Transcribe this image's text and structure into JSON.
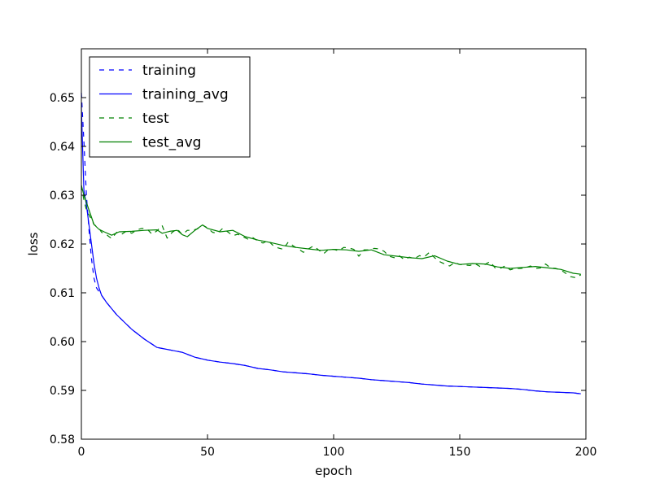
{
  "chart_data": {
    "type": "line",
    "title": "",
    "xlabel": "epoch",
    "ylabel": "loss",
    "xlim": [
      0,
      200
    ],
    "ylim": [
      0.58,
      0.66
    ],
    "x_ticks": [
      0,
      50,
      100,
      150,
      200
    ],
    "y_ticks": [
      0.58,
      0.59,
      0.6,
      0.61,
      0.62,
      0.63,
      0.64,
      0.65
    ],
    "grid": false,
    "legend_position": "top-left",
    "series": [
      {
        "name": "training",
        "style": "dashed",
        "color": "#0000ff",
        "points": [
          [
            0,
            0.651
          ],
          [
            1,
            0.641
          ],
          [
            2,
            0.63
          ],
          [
            3,
            0.623
          ],
          [
            4,
            0.617
          ],
          [
            5,
            0.613
          ],
          [
            6,
            0.611
          ],
          [
            8,
            0.6095
          ],
          [
            10,
            0.608
          ],
          [
            14,
            0.6055
          ],
          [
            20,
            0.6025
          ],
          [
            25,
            0.6005
          ],
          [
            30,
            0.5988
          ],
          [
            33,
            0.5985
          ],
          [
            35,
            0.5983
          ],
          [
            40,
            0.5978
          ],
          [
            45,
            0.5968
          ],
          [
            50,
            0.5962
          ],
          [
            55,
            0.5958
          ],
          [
            60,
            0.5955
          ],
          [
            65,
            0.5951
          ],
          [
            70,
            0.5945
          ],
          [
            75,
            0.5942
          ],
          [
            80,
            0.5938
          ],
          [
            85,
            0.5936
          ],
          [
            90,
            0.5934
          ],
          [
            95,
            0.5931
          ],
          [
            100,
            0.5929
          ],
          [
            105,
            0.5927
          ],
          [
            110,
            0.5925
          ],
          [
            115,
            0.5922
          ],
          [
            120,
            0.592
          ],
          [
            125,
            0.5918
          ],
          [
            130,
            0.5916
          ],
          [
            135,
            0.5913
          ],
          [
            140,
            0.5911
          ],
          [
            145,
            0.5909
          ],
          [
            150,
            0.5908
          ],
          [
            155,
            0.5907
          ],
          [
            160,
            0.5906
          ],
          [
            165,
            0.5905
          ],
          [
            170,
            0.5904
          ],
          [
            175,
            0.5902
          ],
          [
            180,
            0.5899
          ],
          [
            185,
            0.5897
          ],
          [
            190,
            0.5896
          ],
          [
            195,
            0.5895
          ],
          [
            198,
            0.5893
          ]
        ]
      },
      {
        "name": "training_avg",
        "style": "solid",
        "color": "#0000ff",
        "points": [
          [
            0,
            0.648
          ],
          [
            1,
            0.631
          ],
          [
            2,
            0.628
          ],
          [
            3,
            0.624
          ],
          [
            4,
            0.62
          ],
          [
            5,
            0.616
          ],
          [
            6,
            0.613
          ],
          [
            7,
            0.611
          ],
          [
            8,
            0.6095
          ],
          [
            10,
            0.608
          ],
          [
            14,
            0.6055
          ],
          [
            20,
            0.6025
          ],
          [
            25,
            0.6005
          ],
          [
            30,
            0.5988
          ],
          [
            33,
            0.5985
          ],
          [
            35,
            0.5983
          ],
          [
            40,
            0.5978
          ],
          [
            45,
            0.5968
          ],
          [
            50,
            0.5962
          ],
          [
            55,
            0.5958
          ],
          [
            60,
            0.5955
          ],
          [
            65,
            0.5951
          ],
          [
            70,
            0.5945
          ],
          [
            75,
            0.5942
          ],
          [
            80,
            0.5938
          ],
          [
            85,
            0.5936
          ],
          [
            90,
            0.5934
          ],
          [
            95,
            0.5931
          ],
          [
            100,
            0.5929
          ],
          [
            105,
            0.5927
          ],
          [
            110,
            0.5925
          ],
          [
            115,
            0.5922
          ],
          [
            120,
            0.592
          ],
          [
            125,
            0.5918
          ],
          [
            130,
            0.5916
          ],
          [
            135,
            0.5913
          ],
          [
            140,
            0.5911
          ],
          [
            145,
            0.5909
          ],
          [
            150,
            0.5908
          ],
          [
            155,
            0.5907
          ],
          [
            160,
            0.5906
          ],
          [
            165,
            0.5905
          ],
          [
            170,
            0.5904
          ],
          [
            175,
            0.5902
          ],
          [
            180,
            0.5899
          ],
          [
            185,
            0.5897
          ],
          [
            190,
            0.5896
          ],
          [
            195,
            0.5895
          ],
          [
            198,
            0.5893
          ]
        ]
      },
      {
        "name": "test",
        "style": "dashed",
        "color": "#008000",
        "points": [
          [
            0,
            0.632
          ],
          [
            1,
            0.629
          ],
          [
            2,
            0.627
          ],
          [
            3,
            0.626
          ],
          [
            4,
            0.625
          ],
          [
            5,
            0.624
          ],
          [
            6,
            0.6236
          ],
          [
            7,
            0.6232
          ],
          [
            8,
            0.6224
          ],
          [
            10,
            0.6219
          ],
          [
            12,
            0.6211
          ],
          [
            14,
            0.6224
          ],
          [
            16,
            0.622
          ],
          [
            18,
            0.6227
          ],
          [
            20,
            0.6222
          ],
          [
            22,
            0.6229
          ],
          [
            24,
            0.6232
          ],
          [
            26,
            0.6231
          ],
          [
            28,
            0.622
          ],
          [
            30,
            0.6227
          ],
          [
            32,
            0.6238
          ],
          [
            34,
            0.6212
          ],
          [
            36,
            0.6224
          ],
          [
            38,
            0.6231
          ],
          [
            40,
            0.6219
          ],
          [
            42,
            0.6228
          ],
          [
            44,
            0.6228
          ],
          [
            46,
            0.6231
          ],
          [
            48,
            0.6239
          ],
          [
            50,
            0.6233
          ],
          [
            52,
            0.6224
          ],
          [
            54,
            0.6222
          ],
          [
            56,
            0.6232
          ],
          [
            58,
            0.6225
          ],
          [
            60,
            0.6217
          ],
          [
            62,
            0.622
          ],
          [
            64,
            0.6215
          ],
          [
            66,
            0.621
          ],
          [
            68,
            0.6213
          ],
          [
            70,
            0.6206
          ],
          [
            72,
            0.6202
          ],
          [
            74,
            0.6207
          ],
          [
            76,
            0.6197
          ],
          [
            78,
            0.6192
          ],
          [
            80,
            0.6189
          ],
          [
            82,
            0.6204
          ],
          [
            84,
            0.6196
          ],
          [
            86,
            0.619
          ],
          [
            88,
            0.6183
          ],
          [
            90,
            0.619
          ],
          [
            92,
            0.6196
          ],
          [
            94,
            0.6188
          ],
          [
            96,
            0.618
          ],
          [
            98,
            0.6189
          ],
          [
            100,
            0.6189
          ],
          [
            102,
            0.6186
          ],
          [
            104,
            0.6193
          ],
          [
            106,
            0.6192
          ],
          [
            108,
            0.6189
          ],
          [
            110,
            0.6175
          ],
          [
            112,
            0.6188
          ],
          [
            114,
            0.6188
          ],
          [
            116,
            0.6191
          ],
          [
            118,
            0.619
          ],
          [
            120,
            0.6185
          ],
          [
            122,
            0.6175
          ],
          [
            124,
            0.6172
          ],
          [
            126,
            0.6176
          ],
          [
            128,
            0.6168
          ],
          [
            130,
            0.6173
          ],
          [
            132,
            0.617
          ],
          [
            134,
            0.6176
          ],
          [
            136,
            0.6174
          ],
          [
            138,
            0.6183
          ],
          [
            140,
            0.6172
          ],
          [
            142,
            0.6164
          ],
          [
            144,
            0.6159
          ],
          [
            146,
            0.6155
          ],
          [
            148,
            0.6162
          ],
          [
            150,
            0.6158
          ],
          [
            152,
            0.6157
          ],
          [
            154,
            0.6156
          ],
          [
            156,
            0.616
          ],
          [
            158,
            0.6154
          ],
          [
            160,
            0.6158
          ],
          [
            162,
            0.6164
          ],
          [
            164,
            0.6151
          ],
          [
            166,
            0.615
          ],
          [
            168,
            0.6155
          ],
          [
            170,
            0.6147
          ],
          [
            172,
            0.615
          ],
          [
            174,
            0.615
          ],
          [
            176,
            0.6151
          ],
          [
            178,
            0.6155
          ],
          [
            180,
            0.615
          ],
          [
            182,
            0.6151
          ],
          [
            184,
            0.6159
          ],
          [
            186,
            0.6151
          ],
          [
            188,
            0.615
          ],
          [
            190,
            0.6147
          ],
          [
            192,
            0.614
          ],
          [
            194,
            0.6133
          ],
          [
            196,
            0.6131
          ],
          [
            198,
            0.6137
          ]
        ]
      },
      {
        "name": "test_avg",
        "style": "solid",
        "color": "#008000",
        "points": [
          [
            0,
            0.632
          ],
          [
            1,
            0.63
          ],
          [
            3,
            0.627
          ],
          [
            5,
            0.624
          ],
          [
            7,
            0.623
          ],
          [
            9,
            0.6225
          ],
          [
            12,
            0.6218
          ],
          [
            15,
            0.6225
          ],
          [
            20,
            0.6226
          ],
          [
            25,
            0.6228
          ],
          [
            30,
            0.6229
          ],
          [
            32,
            0.6222
          ],
          [
            35,
            0.6226
          ],
          [
            38,
            0.6228
          ],
          [
            40,
            0.6219
          ],
          [
            42,
            0.6215
          ],
          [
            45,
            0.6228
          ],
          [
            48,
            0.6239
          ],
          [
            50,
            0.6232
          ],
          [
            55,
            0.6225
          ],
          [
            60,
            0.6228
          ],
          [
            65,
            0.6215
          ],
          [
            70,
            0.6208
          ],
          [
            75,
            0.6203
          ],
          [
            80,
            0.6197
          ],
          [
            85,
            0.6193
          ],
          [
            90,
            0.619
          ],
          [
            95,
            0.6187
          ],
          [
            100,
            0.6189
          ],
          [
            105,
            0.6188
          ],
          [
            110,
            0.6185
          ],
          [
            115,
            0.6188
          ],
          [
            120,
            0.6178
          ],
          [
            125,
            0.6175
          ],
          [
            130,
            0.6172
          ],
          [
            135,
            0.617
          ],
          [
            140,
            0.6176
          ],
          [
            145,
            0.6165
          ],
          [
            150,
            0.6158
          ],
          [
            155,
            0.616
          ],
          [
            160,
            0.6159
          ],
          [
            165,
            0.6153
          ],
          [
            170,
            0.615
          ],
          [
            175,
            0.6152
          ],
          [
            180,
            0.6154
          ],
          [
            185,
            0.6151
          ],
          [
            190,
            0.6148
          ],
          [
            195,
            0.614
          ],
          [
            198,
            0.6138
          ]
        ]
      }
    ]
  }
}
